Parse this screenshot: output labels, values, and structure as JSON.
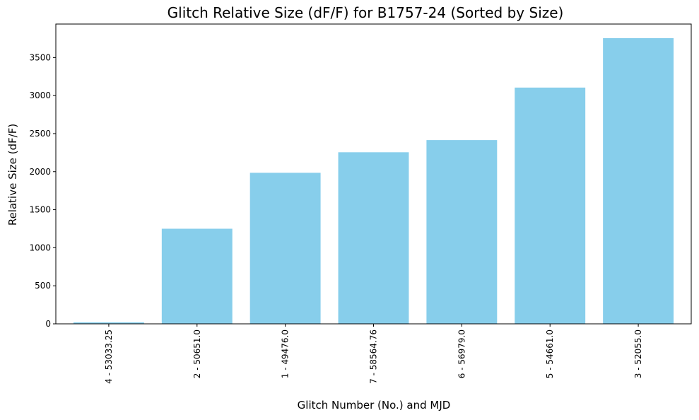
{
  "chart_data": {
    "type": "bar",
    "title": "Glitch Relative Size (dF/F) for B1757-24 (Sorted by Size)",
    "xlabel": "Glitch Number (No.) and MJD",
    "ylabel": "Relative Size (dF/F)",
    "categories": [
      "4 - 53033.25",
      "2 - 50651.0",
      "1 - 49476.0",
      "7 - 58564.76",
      "6 - 56979.0",
      "5 - 54661.0",
      "3 - 52055.0"
    ],
    "values": [
      20,
      1250,
      1985,
      2255,
      2415,
      3105,
      3755
    ],
    "ylim": [
      0,
      3940
    ],
    "yticks": [
      0,
      500,
      1000,
      1500,
      2000,
      2500,
      3000,
      3500
    ],
    "ytick_labels": [
      "0",
      "500",
      "1000",
      "1500",
      "2000",
      "2500",
      "3000",
      "3500"
    ],
    "bar_color": "#87CEEB",
    "grid": false,
    "legend": "none"
  }
}
